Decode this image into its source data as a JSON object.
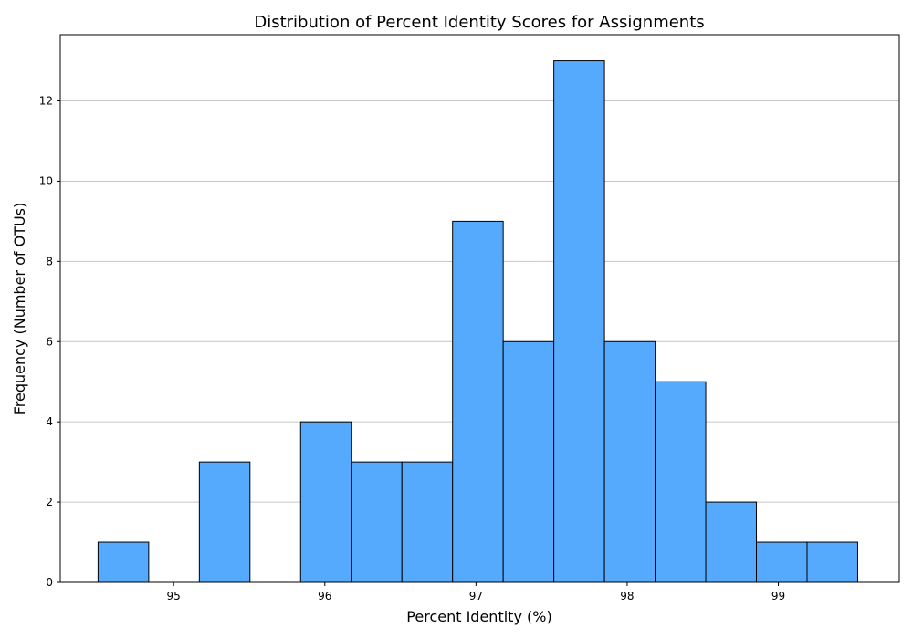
{
  "chart_data": {
    "type": "bar",
    "title": "Distribution of Percent Identity Scores for Assignments",
    "xlabel": "Percent Identity (%)",
    "ylabel": "Frequency (Number of OTUs)",
    "xlim": [
      94.25,
      99.8
    ],
    "ylim": [
      0,
      13.65
    ],
    "xticks": [
      95,
      96,
      97,
      98,
      99
    ],
    "yticks": [
      0,
      2,
      4,
      6,
      8,
      10,
      12
    ],
    "grid": "y-axis horizontal lines",
    "bin_edges": [
      94.5,
      94.835,
      95.17,
      95.505,
      95.84,
      96.175,
      96.51,
      96.845,
      97.18,
      97.515,
      97.85,
      98.185,
      98.52,
      98.855,
      99.19,
      99.525
    ],
    "values": [
      1,
      0,
      3,
      0,
      4,
      3,
      3,
      9,
      6,
      13,
      6,
      5,
      2,
      1,
      1
    ],
    "bar_color": "#56aafe",
    "edge_color": "#000000"
  }
}
